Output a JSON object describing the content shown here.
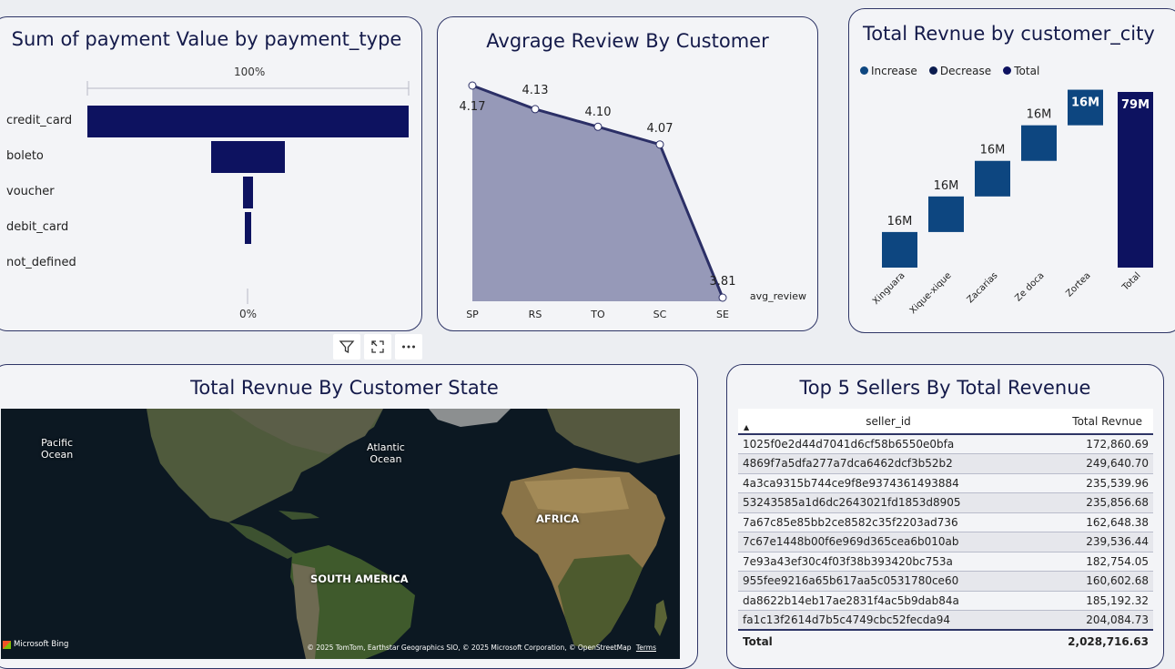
{
  "funnel": {
    "title": "Sum of payment Value by payment_type",
    "top_pct": "100%",
    "bottom_pct": "0%",
    "items": [
      {
        "label": "credit_card",
        "value": 1.0
      },
      {
        "label": "boleto",
        "value": 0.23
      },
      {
        "label": "voucher",
        "value": 0.03
      },
      {
        "label": "debit_card",
        "value": 0.02
      },
      {
        "label": "not_defined",
        "value": 0.0
      }
    ]
  },
  "review": {
    "title": "Avgrage Review By Customer",
    "series_label": "avg_review",
    "color": "#9699b8",
    "line_color": "#2b2f66"
  },
  "revenue": {
    "title": "Total Revnue by customer_city",
    "legend": [
      {
        "label": "Increase",
        "color": "#0d4680"
      },
      {
        "label": "Decrease",
        "color": "#0b1c4f"
      },
      {
        "label": "Total",
        "color": "#0d1260"
      }
    ]
  },
  "map": {
    "title": "Total Revnue By Customer State",
    "labels": {
      "pacific": "Pacific\nOcean",
      "atlantic": "Atlantic\nOcean",
      "africa": "AFRICA",
      "south_america": "SOUTH AMERICA"
    },
    "brand": "Microsoft Bing",
    "attribution": "© 2025 TomTom, Earthstar Geographics SIO, © 2025 Microsoft Corporation, © OpenStreetMap",
    "terms": "Terms"
  },
  "toolbar": {
    "filter_icon": "filter-icon",
    "focus_icon": "focus-mode-icon",
    "more_icon": "more-options-icon"
  },
  "sellers": {
    "title": "Top 5 Sellers By Total Revenue",
    "col_id": "seller_id",
    "col_rev": "Total Revnue",
    "rows": [
      {
        "id": "1025f0e2d44d7041d6cf58b6550e0bfa",
        "rev": "172,860.69"
      },
      {
        "id": "4869f7a5dfa277a7dca6462dcf3b52b2",
        "rev": "249,640.70"
      },
      {
        "id": "4a3ca9315b744ce9f8e9374361493884",
        "rev": "235,539.96"
      },
      {
        "id": "53243585a1d6dc2643021fd1853d8905",
        "rev": "235,856.68"
      },
      {
        "id": "7a67c85e85bb2ce8582c35f2203ad736",
        "rev": "162,648.38"
      },
      {
        "id": "7c67e1448b00f6e969d365cea6b010ab",
        "rev": "239,536.44"
      },
      {
        "id": "7e93a43ef30c4f03f38b393420bc753a",
        "rev": "182,754.05"
      },
      {
        "id": "955fee9216a65b617aa5c0531780ce60",
        "rev": "160,602.68"
      },
      {
        "id": "da8622b14eb17ae2831f4ac5b9dab84a",
        "rev": "185,192.32"
      },
      {
        "id": "fa1c13f2614d7b5c4749cbc52fecda94",
        "rev": "204,084.73"
      }
    ],
    "total_label": "Total",
    "total_value": "2,028,716.63"
  },
  "chart_data": [
    {
      "type": "area",
      "categories": [
        "SP",
        "RS",
        "TO",
        "SC",
        "SE"
      ],
      "series": [
        {
          "name": "avg_review",
          "values": [
            4.17,
            4.13,
            4.1,
            4.07,
            3.81
          ]
        }
      ],
      "data_labels": [
        "4.17",
        "4.13",
        "4.10",
        "4.07",
        "3.81"
      ],
      "ylim": [
        3.81,
        4.17
      ]
    },
    {
      "type": "bar",
      "subtype": "waterfall",
      "categories": [
        "Xinguara",
        "Xique-xique",
        "Zacarias",
        "Ze doca",
        "Zortea",
        "Total"
      ],
      "values": [
        16,
        16,
        16,
        16,
        16,
        79
      ],
      "data_labels": [
        "16M",
        "16M",
        "16M",
        "16M",
        "16M",
        "79M"
      ],
      "legend": "top-left"
    }
  ]
}
